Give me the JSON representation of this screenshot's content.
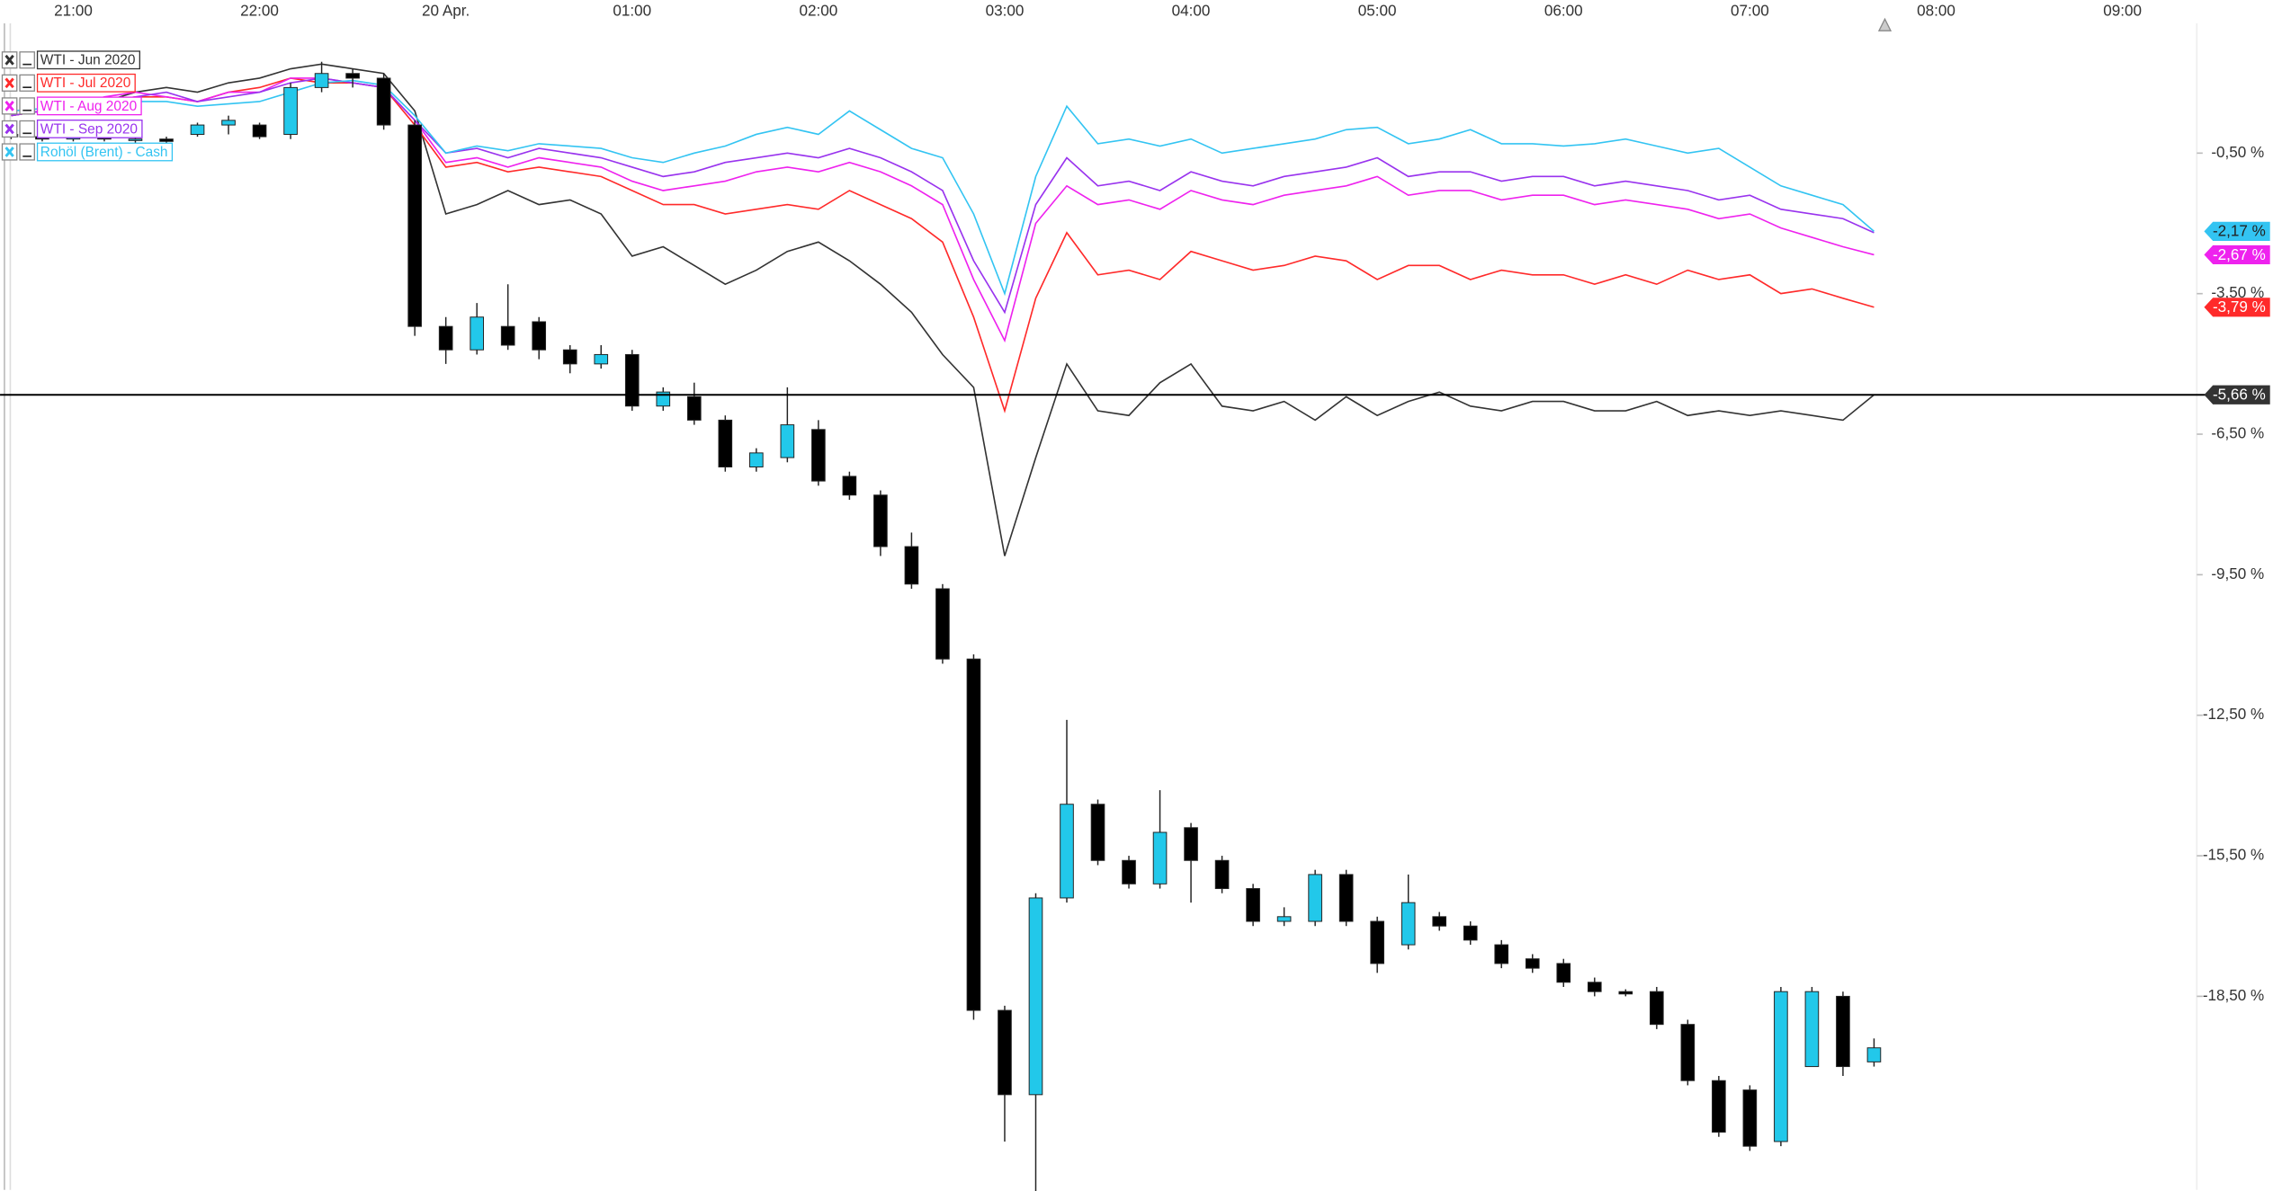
{
  "chart_data": {
    "type": "candlestick",
    "categories": [
      null,
      null,
      "21:00",
      null,
      null,
      null,
      null,
      null,
      "22:00",
      null,
      null,
      null,
      null,
      null,
      "20 Apr.",
      null,
      null,
      null,
      null,
      null,
      "01:00",
      null,
      null,
      null,
      null,
      null,
      "02:00",
      null,
      null,
      null,
      null,
      null,
      "03:00",
      null,
      null,
      null,
      null,
      null,
      "04:00",
      null,
      null,
      null,
      null,
      null,
      "05:00",
      null,
      null,
      null,
      null,
      null,
      "06:00",
      null,
      null,
      null,
      null,
      null,
      "07:00",
      null,
      null,
      null,
      null,
      null,
      "08:00",
      null,
      null,
      null,
      null,
      null,
      "09:00",
      null
    ],
    "open": [
      -0.1,
      -0.15,
      -0.2,
      -0.15,
      -0.2,
      -0.2,
      -0.1,
      0.1,
      0.1,
      -0.1,
      0.9,
      1.2,
      1.1,
      0.1,
      -4.2,
      -4.7,
      -4.2,
      -4.1,
      -4.7,
      -5.0,
      -4.8,
      -5.9,
      -5.7,
      -6.2,
      -7.2,
      -7.0,
      -6.4,
      -7.4,
      -7.8,
      -8.9,
      -9.8,
      -11.3,
      -18.8,
      -20.6,
      -16.4,
      -14.4,
      -15.6,
      -16.1,
      -14.9,
      -15.6,
      -16.2,
      -16.9,
      -16.9,
      -15.9,
      -16.9,
      -17.4,
      -16.8,
      -17.0,
      -17.4,
      -17.7,
      -17.8,
      -18.2,
      -18.4,
      -18.4,
      -19.1,
      -20.3,
      -20.5,
      -21.6,
      -20.0,
      -18.5,
      -19.9,
      null,
      null,
      null,
      null,
      null,
      null,
      null,
      null,
      null
    ],
    "high": [
      0,
      -0.1,
      -0.1,
      -0.1,
      -0.15,
      -0.15,
      0.15,
      0.3,
      0.15,
      1.0,
      1.45,
      1.3,
      1.2,
      0.2,
      -4.0,
      -3.7,
      -3.3,
      -4.0,
      -4.6,
      -4.6,
      -4.7,
      -5.5,
      -5.4,
      -6.1,
      -6.8,
      -5.5,
      -6.2,
      -7.3,
      -7.7,
      -8.6,
      -9.7,
      -11.2,
      -18.7,
      -16.3,
      -12.6,
      -14.3,
      -15.5,
      -14.1,
      -14.8,
      -15.5,
      -16.1,
      -16.6,
      -15.8,
      -15.8,
      -16.8,
      -15.9,
      -16.7,
      -16.9,
      -17.3,
      -17.6,
      -17.7,
      -18.1,
      -18.35,
      -18.3,
      -19.0,
      -20.2,
      -20.4,
      -18.3,
      -18.3,
      -18.4,
      -19.4,
      null,
      null,
      null,
      null,
      null,
      null,
      null,
      null,
      null
    ],
    "low": [
      -0.2,
      -0.25,
      -0.25,
      -0.25,
      -0.3,
      -0.3,
      -0.15,
      -0.1,
      -0.2,
      -0.2,
      0.8,
      0.9,
      0,
      -4.4,
      -5.0,
      -4.8,
      -4.7,
      -4.9,
      -5.2,
      -5.1,
      -6.0,
      -6.0,
      -6.3,
      -7.3,
      -7.3,
      -7.1,
      -7.6,
      -7.9,
      -9.1,
      -9.8,
      -11.4,
      -19.0,
      -21.6,
      -22.9,
      -16.5,
      -15.7,
      -16.2,
      -16.2,
      -16.5,
      -16.3,
      -17.0,
      -17.0,
      -17.0,
      -17.0,
      -18.0,
      -17.5,
      -17.1,
      -17.4,
      -17.9,
      -18.0,
      -18.3,
      -18.5,
      -18.5,
      -19.2,
      -20.4,
      -21.5,
      -21.8,
      -21.7,
      -20.0,
      -20.2,
      -20.0,
      null,
      null,
      null,
      null,
      null,
      null,
      null,
      null,
      null
    ],
    "close": [
      -0.15,
      -0.2,
      -0.15,
      -0.2,
      -0.2,
      -0.25,
      0.1,
      0.2,
      -0.15,
      0.9,
      1.2,
      1.1,
      0.1,
      -4.2,
      -4.7,
      -4.0,
      -4.6,
      -4.7,
      -5.0,
      -4.8,
      -5.9,
      -5.6,
      -6.2,
      -7.2,
      -6.9,
      -6.3,
      -7.5,
      -7.8,
      -8.9,
      -9.7,
      -11.3,
      -18.8,
      -20.6,
      -16.4,
      -14.4,
      -15.6,
      -16.1,
      -15.0,
      -15.6,
      -16.2,
      -16.9,
      -16.8,
      -15.9,
      -16.9,
      -17.8,
      -16.5,
      -17.0,
      -17.3,
      -17.8,
      -17.9,
      -18.2,
      -18.4,
      -18.45,
      -19.1,
      -20.3,
      -21.4,
      -21.7,
      -18.4,
      -18.4,
      -20.0,
      -19.6,
      null,
      null,
      null,
      null,
      null,
      null,
      null,
      null,
      null
    ],
    "up_color": "#22c8ea",
    "down_color": "#000000",
    "ylim": [
      -22.6,
      2.3
    ],
    "yticks": [
      {
        "value": -0.5,
        "label": "-0,50 %"
      },
      {
        "value": -3.5,
        "label": "-3,50 %"
      },
      {
        "value": -6.5,
        "label": "-6,50 %"
      },
      {
        "value": -9.5,
        "label": "-9,50 %"
      },
      {
        "value": -12.5,
        "label": "-12,50 %"
      },
      {
        "value": -15.5,
        "label": "-15,50 %"
      },
      {
        "value": -18.5,
        "label": "-18,50 %"
      }
    ],
    "grid": false,
    "legend": "top-left",
    "series": [
      {
        "name": "WTI - Jun 2020",
        "color": "#333333",
        "last_value_line": true,
        "values": [
          0.3,
          0.4,
          0.5,
          0.6,
          0.8,
          0.9,
          0.8,
          1.0,
          1.1,
          1.3,
          1.4,
          1.3,
          1.2,
          0.4,
          -1.8,
          -1.6,
          -1.3,
          -1.6,
          -1.5,
          -1.8,
          -2.7,
          -2.5,
          -2.9,
          -3.3,
          -3.0,
          -2.6,
          -2.4,
          -2.8,
          -3.3,
          -3.9,
          -4.8,
          -5.5,
          -9.1,
          -7.0,
          -5.0,
          -6.0,
          -6.1,
          -5.4,
          -5.0,
          -5.9,
          -6.0,
          -5.8,
          -6.2,
          -5.7,
          -6.1,
          -5.8,
          -5.6,
          -5.9,
          -6.0,
          -5.8,
          -5.8,
          -6.0,
          -6.0,
          -5.8,
          -6.1,
          -6.0,
          -6.1,
          -6.0,
          -6.1,
          -6.2,
          -5.66,
          null,
          null,
          null,
          null,
          null,
          null,
          null,
          null,
          null
        ],
        "value_labels": [
          null,
          null,
          null,
          null,
          null,
          null,
          null,
          null,
          null,
          null,
          null,
          null,
          null,
          null,
          null,
          null,
          null,
          null,
          null,
          null,
          null,
          null,
          null,
          null,
          null,
          null,
          null,
          null,
          null,
          null,
          null,
          null,
          null,
          null,
          null,
          null,
          null,
          null,
          null,
          null,
          null,
          null,
          null,
          null,
          null,
          null,
          null,
          null,
          null,
          null,
          null,
          null,
          null,
          null,
          null,
          null,
          null,
          null,
          null,
          null,
          "-5,66 %",
          null,
          null,
          null,
          null,
          null,
          null,
          null,
          null,
          null
        ]
      },
      {
        "name": "WTI - Jul 2020",
        "color": "#ff2a2a",
        "values": [
          0.3,
          0.4,
          0.5,
          0.6,
          0.7,
          0.7,
          0.6,
          0.8,
          0.9,
          1.1,
          1.0,
          1.0,
          0.9,
          0.1,
          -0.8,
          -0.7,
          -0.9,
          -0.8,
          -0.9,
          -1.0,
          -1.3,
          -1.6,
          -1.6,
          -1.8,
          -1.7,
          -1.6,
          -1.7,
          -1.3,
          -1.6,
          -1.9,
          -2.4,
          -4.0,
          -6.0,
          -3.6,
          -2.2,
          -3.1,
          -3.0,
          -3.2,
          -2.6,
          -2.8,
          -3.0,
          -2.9,
          -2.7,
          -2.8,
          -3.2,
          -2.9,
          -2.9,
          -3.2,
          -3.0,
          -3.1,
          -3.1,
          -3.3,
          -3.1,
          -3.3,
          -3.0,
          -3.2,
          -3.1,
          -3.5,
          -3.4,
          -3.6,
          -3.79,
          null,
          null,
          null,
          null,
          null,
          null,
          null,
          null,
          null
        ],
        "value_labels": [
          null,
          null,
          null,
          null,
          null,
          null,
          null,
          null,
          null,
          null,
          null,
          null,
          null,
          null,
          null,
          null,
          null,
          null,
          null,
          null,
          null,
          null,
          null,
          null,
          null,
          null,
          null,
          null,
          null,
          null,
          null,
          null,
          null,
          null,
          null,
          null,
          null,
          null,
          null,
          null,
          null,
          null,
          null,
          null,
          null,
          null,
          null,
          null,
          null,
          null,
          null,
          null,
          null,
          null,
          null,
          null,
          null,
          null,
          null,
          null,
          "-3,79 %",
          null,
          null,
          null,
          null,
          null,
          null,
          null,
          null,
          null
        ]
      },
      {
        "name": "WTI - Aug 2020",
        "color": "#ee22ee",
        "values": [
          0.3,
          0.4,
          0.5,
          0.7,
          0.8,
          0.7,
          0.6,
          0.8,
          0.8,
          1.1,
          1.1,
          1.0,
          0.9,
          0.2,
          -0.7,
          -0.6,
          -0.8,
          -0.6,
          -0.7,
          -0.8,
          -1.1,
          -1.3,
          -1.2,
          -1.1,
          -0.9,
          -0.8,
          -0.9,
          -0.7,
          -0.9,
          -1.2,
          -1.6,
          -3.2,
          -4.5,
          -2.0,
          -1.2,
          -1.6,
          -1.5,
          -1.7,
          -1.3,
          -1.5,
          -1.6,
          -1.4,
          -1.3,
          -1.2,
          -1.0,
          -1.4,
          -1.3,
          -1.3,
          -1.5,
          -1.4,
          -1.4,
          -1.6,
          -1.5,
          -1.6,
          -1.7,
          -1.9,
          -1.8,
          -2.1,
          -2.3,
          -2.5,
          -2.67,
          null,
          null,
          null,
          null,
          null,
          null,
          null,
          null,
          null
        ],
        "value_labels": [
          null,
          null,
          null,
          null,
          null,
          null,
          null,
          null,
          null,
          null,
          null,
          null,
          null,
          null,
          null,
          null,
          null,
          null,
          null,
          null,
          null,
          null,
          null,
          null,
          null,
          null,
          null,
          null,
          null,
          null,
          null,
          null,
          null,
          null,
          null,
          null,
          null,
          null,
          null,
          null,
          null,
          null,
          null,
          null,
          null,
          null,
          null,
          null,
          null,
          null,
          null,
          null,
          null,
          null,
          null,
          null,
          null,
          null,
          null,
          null,
          "-2,67 %",
          null,
          null,
          null,
          null,
          null,
          null,
          null,
          null,
          null
        ]
      },
      {
        "name": "WTI - Sep 2020",
        "color": "#9933ee",
        "values": [
          0.3,
          0.4,
          0.5,
          0.6,
          0.7,
          0.8,
          0.6,
          0.7,
          0.8,
          1.0,
          1.1,
          1.0,
          0.9,
          0.2,
          -0.5,
          -0.4,
          -0.6,
          -0.4,
          -0.5,
          -0.6,
          -0.8,
          -1.0,
          -0.9,
          -0.7,
          -0.6,
          -0.5,
          -0.6,
          -0.4,
          -0.6,
          -0.9,
          -1.3,
          -2.8,
          -3.9,
          -1.6,
          -0.6,
          -1.2,
          -1.1,
          -1.3,
          -0.9,
          -1.1,
          -1.2,
          -1.0,
          -0.9,
          -0.8,
          -0.6,
          -1.0,
          -0.9,
          -0.9,
          -1.1,
          -1.0,
          -1.0,
          -1.2,
          -1.1,
          -1.2,
          -1.3,
          -1.5,
          -1.4,
          -1.7,
          -1.8,
          -1.9,
          -2.2,
          null,
          null,
          null,
          null,
          null,
          null,
          null,
          null,
          null
        ]
      },
      {
        "name": "Rohöl (Brent) - Cash",
        "color": "#33c4f2",
        "values": [
          0.4,
          0.45,
          0.5,
          0.55,
          0.6,
          0.6,
          0.5,
          0.55,
          0.6,
          0.8,
          1.0,
          1.05,
          0.95,
          0.3,
          -0.5,
          -0.35,
          -0.45,
          -0.3,
          -0.35,
          -0.4,
          -0.6,
          -0.7,
          -0.5,
          -0.35,
          -0.1,
          0.05,
          -0.1,
          0.4,
          0.0,
          -0.4,
          -0.6,
          -1.8,
          -3.5,
          -1.0,
          0.5,
          -0.3,
          -0.2,
          -0.35,
          -0.2,
          -0.5,
          -0.4,
          -0.3,
          -0.2,
          0.0,
          0.05,
          -0.3,
          -0.2,
          0.0,
          -0.3,
          -0.3,
          -0.35,
          -0.3,
          -0.2,
          -0.35,
          -0.5,
          -0.4,
          -0.8,
          -1.2,
          -1.4,
          -1.6,
          -2.17,
          null,
          null,
          null,
          null,
          null,
          null,
          null,
          null,
          null
        ],
        "value_labels": [
          null,
          null,
          null,
          null,
          null,
          null,
          null,
          null,
          null,
          null,
          null,
          null,
          null,
          null,
          null,
          null,
          null,
          null,
          null,
          null,
          null,
          null,
          null,
          null,
          null,
          null,
          null,
          null,
          null,
          null,
          null,
          null,
          null,
          null,
          null,
          null,
          null,
          null,
          null,
          null,
          null,
          null,
          null,
          null,
          null,
          null,
          null,
          null,
          null,
          null,
          null,
          null,
          null,
          null,
          null,
          null,
          null,
          null,
          null,
          null,
          "-2,17 %",
          null,
          null,
          null,
          null,
          null,
          null,
          null,
          null,
          null
        ]
      }
    ]
  }
}
